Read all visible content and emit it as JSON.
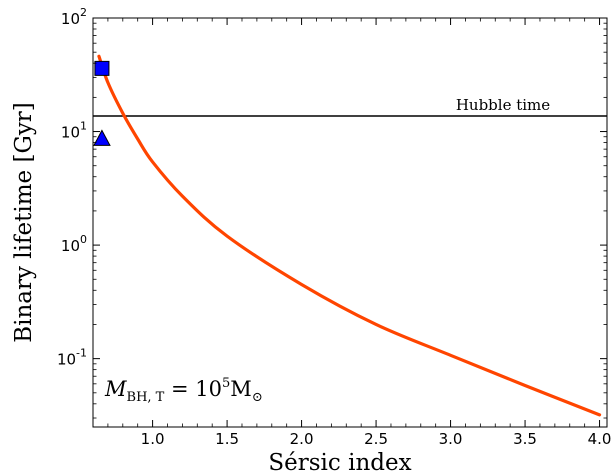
{
  "chart_data": {
    "type": "line",
    "xlabel": "Sérsic index",
    "ylabel": "Binary lifetime [Gyr]",
    "xlim": [
      0.6,
      4.05
    ],
    "ylim": [
      0.025,
      100
    ],
    "yscale": "log",
    "grid": false,
    "x_ticks": [
      {
        "value": 1.0,
        "label": "1.0"
      },
      {
        "value": 1.5,
        "label": "1.5"
      },
      {
        "value": 2.0,
        "label": "2.0"
      },
      {
        "value": 2.5,
        "label": "2.5"
      },
      {
        "value": 3.0,
        "label": "3.0"
      },
      {
        "value": 3.5,
        "label": "3.5"
      },
      {
        "value": 4.0,
        "label": "4.0"
      }
    ],
    "y_ticks": [
      {
        "value": 0.1,
        "base": "10",
        "exp": "-1"
      },
      {
        "value": 1,
        "base": "10",
        "exp": "0"
      },
      {
        "value": 10,
        "base": "10",
        "exp": "1"
      },
      {
        "value": 100,
        "base": "10",
        "exp": "2"
      }
    ],
    "series": [
      {
        "style": "line",
        "color": "#ff4500",
        "x": [
          0.64,
          0.7,
          0.8,
          0.9,
          1.0,
          1.2,
          1.5,
          2.0,
          2.5,
          3.0,
          3.5,
          4.0
        ],
        "y": [
          46,
          27,
          14.5,
          8.6,
          5.4,
          2.7,
          1.2,
          0.45,
          0.2,
          0.107,
          0.058,
          0.032
        ]
      },
      {
        "style": "marker",
        "marker": "square",
        "color": "#0000ff",
        "x": [
          0.66
        ],
        "y": [
          36
        ]
      },
      {
        "style": "marker",
        "marker": "triangle",
        "color": "#0000ff",
        "x": [
          0.66
        ],
        "y": [
          8.7
        ]
      }
    ],
    "reference_lines": [
      {
        "orientation": "horizontal",
        "y": 13.7,
        "color": "#000000",
        "label": "Hubble time"
      }
    ],
    "annotations": [
      {
        "symbol": "M",
        "subscript": "BH, T",
        "equals": "= 10",
        "superscript": "5",
        "unit": "M",
        "unit_subscript": "⊙"
      }
    ]
  }
}
